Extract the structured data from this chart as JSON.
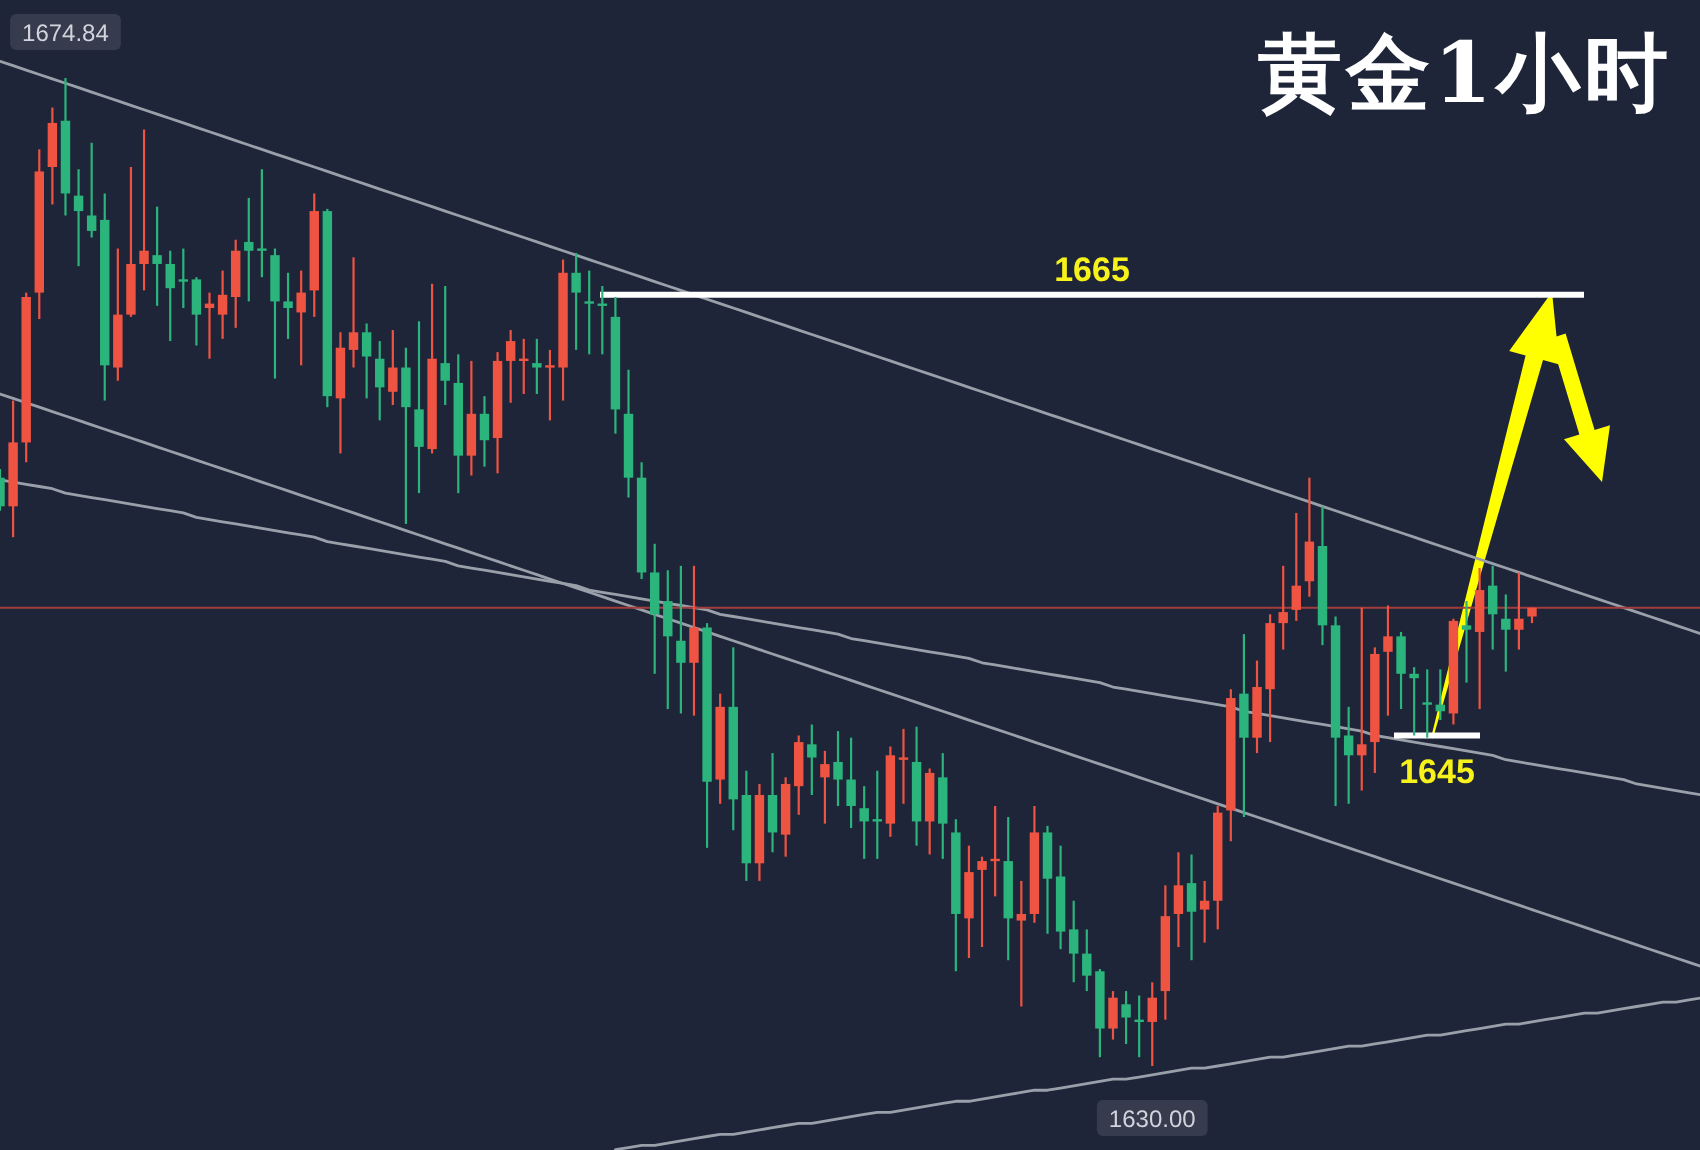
{
  "chart_data": {
    "type": "candlestick",
    "title": "黄金1小时",
    "categories": [
      null,
      null,
      null,
      null,
      null,
      null,
      null,
      null,
      null,
      null,
      null,
      null,
      null,
      null,
      null,
      null,
      null,
      null,
      null,
      null,
      null,
      null,
      null,
      null,
      null,
      null,
      null,
      null,
      null,
      null,
      null,
      null,
      null,
      null,
      null,
      null,
      null,
      null,
      null,
      null,
      null,
      null,
      null,
      null,
      null,
      null,
      null,
      null,
      null,
      null,
      null,
      null,
      null,
      null,
      null,
      null,
      null,
      null,
      null,
      null,
      null,
      null,
      null,
      null,
      null,
      null,
      null,
      null,
      null,
      null,
      null,
      null,
      null,
      null,
      null,
      null,
      null,
      null,
      null,
      null,
      null,
      null,
      null,
      null,
      null,
      null,
      null,
      null,
      null,
      null,
      null,
      null,
      null,
      null,
      null,
      null,
      null,
      null,
      null,
      null,
      null,
      null,
      null,
      null,
      null,
      null,
      null,
      null,
      null,
      null,
      null,
      null,
      null,
      null,
      null,
      null,
      null,
      null,
      null,
      null,
      null,
      null,
      null,
      null,
      null,
      null,
      null,
      null,
      null,
      null,
      null
    ],
    "ohlc": [
      [
        1656.7,
        1657.1,
        1655.2,
        1655.4
      ],
      [
        1655.4,
        1660.2,
        1654.0,
        1658.3
      ],
      [
        1658.3,
        1665.1,
        1657.4,
        1664.9
      ],
      [
        1665.1,
        1671.6,
        1663.9,
        1670.6
      ],
      [
        1670.8,
        1673.5,
        1669.1,
        1672.8
      ],
      [
        1672.9,
        1674.84,
        1668.6,
        1669.6
      ],
      [
        1669.5,
        1670.7,
        1666.3,
        1668.8
      ],
      [
        1668.6,
        1671.9,
        1667.6,
        1667.9
      ],
      [
        1668.4,
        1669.6,
        1660.2,
        1661.8
      ],
      [
        1661.7,
        1667.1,
        1661.1,
        1664.1
      ],
      [
        1664.1,
        1670.8,
        1664.0,
        1666.4
      ],
      [
        1666.4,
        1672.5,
        1665.2,
        1667.0
      ],
      [
        1666.8,
        1669.0,
        1664.5,
        1666.4
      ],
      [
        1666.4,
        1667.0,
        1662.9,
        1665.3
      ],
      [
        1665.7,
        1667.1,
        1664.4,
        1665.6
      ],
      [
        1665.7,
        1665.8,
        1662.7,
        1664.1
      ],
      [
        1664.4,
        1665.1,
        1662.1,
        1664.6
      ],
      [
        1664.1,
        1666.1,
        1663.0,
        1665.0
      ],
      [
        1664.9,
        1667.5,
        1663.5,
        1667.0
      ],
      [
        1667.4,
        1669.4,
        1664.7,
        1667.0
      ],
      [
        1667.1,
        1670.7,
        1665.8,
        1667.0
      ],
      [
        1666.8,
        1667.1,
        1661.2,
        1664.7
      ],
      [
        1664.7,
        1666.0,
        1663.0,
        1664.4
      ],
      [
        1664.2,
        1666.1,
        1661.8,
        1665.1
      ],
      [
        1665.2,
        1669.6,
        1664.0,
        1668.8
      ],
      [
        1668.8,
        1668.9,
        1659.9,
        1660.4
      ],
      [
        1660.3,
        1663.3,
        1657.8,
        1662.6
      ],
      [
        1662.5,
        1666.7,
        1661.7,
        1663.3
      ],
      [
        1663.3,
        1663.7,
        1660.3,
        1662.2
      ],
      [
        1662.1,
        1662.9,
        1659.3,
        1660.8
      ],
      [
        1660.6,
        1663.4,
        1660.0,
        1661.7
      ],
      [
        1661.7,
        1662.6,
        1654.6,
        1659.9
      ],
      [
        1659.8,
        1663.8,
        1656.0,
        1658.1
      ],
      [
        1658.0,
        1665.5,
        1657.8,
        1662.1
      ],
      [
        1661.9,
        1665.4,
        1660.0,
        1661.1
      ],
      [
        1661.0,
        1662.3,
        1656.0,
        1657.7
      ],
      [
        1657.7,
        1662.0,
        1656.8,
        1659.6
      ],
      [
        1659.6,
        1660.4,
        1657.2,
        1658.4
      ],
      [
        1658.5,
        1662.4,
        1656.9,
        1662.0
      ],
      [
        1662.0,
        1663.4,
        1660.1,
        1662.9
      ],
      [
        1662.0,
        1663.0,
        1660.5,
        1662.1
      ],
      [
        1661.9,
        1663.0,
        1660.5,
        1661.7
      ],
      [
        1661.7,
        1662.5,
        1659.3,
        1661.8
      ],
      [
        1661.7,
        1666.6,
        1660.2,
        1666.0
      ],
      [
        1666.0,
        1666.9,
        1662.5,
        1665.1
      ],
      [
        1664.7,
        1666.1,
        1662.3,
        1664.6
      ],
      [
        1664.6,
        1665.4,
        1662.3,
        1664.5
      ],
      [
        1664.0,
        1664.9,
        1658.7,
        1659.8
      ],
      [
        1659.6,
        1661.6,
        1655.8,
        1656.7
      ],
      [
        1656.7,
        1657.4,
        1652.1,
        1652.4
      ],
      [
        1652.4,
        1653.7,
        1647.8,
        1650.5
      ],
      [
        1651.1,
        1652.5,
        1646.2,
        1649.5
      ],
      [
        1649.3,
        1652.7,
        1646.0,
        1648.3
      ],
      [
        1648.3,
        1652.7,
        1645.9,
        1649.9
      ],
      [
        1649.9,
        1650.1,
        1639.9,
        1642.9
      ],
      [
        1643.0,
        1646.9,
        1641.9,
        1646.3
      ],
      [
        1646.3,
        1649.0,
        1640.7,
        1642.1
      ],
      [
        1642.3,
        1643.4,
        1638.4,
        1639.2
      ],
      [
        1639.2,
        1642.8,
        1638.4,
        1642.3
      ],
      [
        1642.3,
        1644.2,
        1639.7,
        1640.6
      ],
      [
        1640.5,
        1643.1,
        1639.5,
        1642.8
      ],
      [
        1642.7,
        1645.0,
        1641.4,
        1644.7
      ],
      [
        1644.6,
        1645.5,
        1642.3,
        1644.0
      ],
      [
        1643.1,
        1644.3,
        1641.0,
        1643.7
      ],
      [
        1643.8,
        1645.2,
        1641.8,
        1643.0
      ],
      [
        1643.0,
        1644.9,
        1640.8,
        1641.8
      ],
      [
        1641.7,
        1642.7,
        1639.4,
        1641.1
      ],
      [
        1641.2,
        1643.4,
        1639.4,
        1641.1
      ],
      [
        1641.0,
        1644.5,
        1640.4,
        1644.1
      ],
      [
        1643.9,
        1645.3,
        1641.9,
        1644.0
      ],
      [
        1643.8,
        1645.4,
        1640.0,
        1641.1
      ],
      [
        1641.1,
        1643.5,
        1639.6,
        1643.3
      ],
      [
        1643.1,
        1644.2,
        1639.4,
        1641.0
      ],
      [
        1640.6,
        1641.2,
        1634.3,
        1636.9
      ],
      [
        1636.7,
        1640.0,
        1634.9,
        1638.8
      ],
      [
        1638.9,
        1639.5,
        1635.4,
        1639.3
      ],
      [
        1639.3,
        1641.8,
        1637.7,
        1639.4
      ],
      [
        1639.3,
        1641.3,
        1634.8,
        1636.7
      ],
      [
        1636.6,
        1638.4,
        1632.7,
        1636.9
      ],
      [
        1636.9,
        1641.8,
        1636.5,
        1640.6
      ],
      [
        1640.6,
        1640.9,
        1636.0,
        1638.5
      ],
      [
        1638.6,
        1640.0,
        1635.3,
        1636.1
      ],
      [
        1636.2,
        1637.5,
        1633.8,
        1635.1
      ],
      [
        1635.1,
        1636.2,
        1633.4,
        1634.1
      ],
      [
        1634.3,
        1634.4,
        1630.4,
        1631.7
      ],
      [
        1631.7,
        1633.4,
        1631.2,
        1633.1
      ],
      [
        1632.8,
        1633.4,
        1631.0,
        1632.2
      ],
      [
        1632.1,
        1633.2,
        1630.4,
        1632.0
      ],
      [
        1632.0,
        1633.8,
        1630.0,
        1633.1
      ],
      [
        1633.4,
        1638.2,
        1632.1,
        1636.8
      ],
      [
        1636.9,
        1639.7,
        1635.4,
        1638.2
      ],
      [
        1638.3,
        1639.6,
        1634.8,
        1637.0
      ],
      [
        1637.1,
        1638.4,
        1635.6,
        1637.5
      ],
      [
        1637.5,
        1641.8,
        1636.2,
        1641.5
      ],
      [
        1641.6,
        1647.1,
        1640.2,
        1646.7
      ],
      [
        1646.9,
        1649.6,
        1641.3,
        1644.9
      ],
      [
        1644.9,
        1648.4,
        1644.2,
        1647.2
      ],
      [
        1647.1,
        1650.5,
        1644.7,
        1650.1
      ],
      [
        1650.1,
        1652.7,
        1648.9,
        1650.6
      ],
      [
        1650.7,
        1655.1,
        1650.2,
        1651.8
      ],
      [
        1652.0,
        1656.7,
        1651.3,
        1653.8
      ],
      [
        1653.6,
        1655.4,
        1649.1,
        1650.0
      ],
      [
        1650.0,
        1650.4,
        1641.8,
        1644.9
      ],
      [
        1645.0,
        1646.3,
        1641.9,
        1644.1
      ],
      [
        1644.1,
        1650.8,
        1642.5,
        1644.6
      ],
      [
        1644.7,
        1649.0,
        1643.3,
        1648.7
      ],
      [
        1648.8,
        1650.9,
        1645.9,
        1649.5
      ],
      [
        1649.5,
        1649.7,
        1646.2,
        1647.8
      ],
      [
        1647.8,
        1648.1,
        1645.0,
        1647.6
      ],
      [
        1646.5,
        1648.0,
        1644.9,
        1646.4
      ],
      [
        1646.4,
        1648.0,
        1645.7,
        1646.1
      ],
      [
        1646.0,
        1650.3,
        1645.5,
        1650.2
      ],
      [
        1650.0,
        1651.1,
        1647.4,
        1649.8
      ],
      [
        1649.7,
        1652.6,
        1646.2,
        1651.6
      ],
      [
        1651.8,
        1652.7,
        1648.9,
        1650.5
      ],
      [
        1650.3,
        1651.4,
        1647.9,
        1649.8
      ],
      [
        1649.8,
        1652.4,
        1648.9,
        1650.3
      ],
      [
        1650.4,
        1650.8,
        1650.1,
        1650.8
      ],
      null,
      null,
      null,
      null,
      null,
      null,
      null,
      null,
      null,
      null,
      null,
      null,
      null
    ],
    "colors": [
      "#2bb47c",
      "#ef5442",
      "#ef5442",
      "#ef5442",
      "#ef5442",
      "#2bb47c",
      "#2bb47c",
      "#2bb47c",
      "#2bb47c",
      "#ef5442",
      "#ef5442",
      "#ef5442",
      "#2bb47c",
      "#2bb47c",
      "#2bb47c",
      "#2bb47c",
      "#ef5442",
      "#ef5442",
      "#ef5442",
      "#2bb47c",
      "#2bb47c",
      "#2bb47c",
      "#2bb47c",
      "#ef5442",
      "#ef5442",
      "#2bb47c",
      "#ef5442",
      "#ef5442",
      "#2bb47c",
      "#2bb47c",
      "#ef5442",
      "#2bb47c",
      "#2bb47c",
      "#ef5442",
      "#2bb47c",
      "#2bb47c",
      "#ef5442",
      "#2bb47c",
      "#ef5442",
      "#ef5442",
      "#ef5442",
      "#2bb47c",
      "#ef5442",
      "#ef5442",
      "#2bb47c",
      "#2bb47c",
      "#2bb47c",
      "#2bb47c",
      "#2bb47c",
      "#2bb47c",
      "#2bb47c",
      "#2bb47c",
      "#2bb47c",
      "#ef5442",
      "#2bb47c",
      "#ef5442",
      "#2bb47c",
      "#2bb47c",
      "#ef5442",
      "#2bb47c",
      "#ef5442",
      "#ef5442",
      "#2bb47c",
      "#ef5442",
      "#2bb47c",
      "#2bb47c",
      "#2bb47c",
      "#2bb47c",
      "#ef5442",
      "#ef5442",
      "#2bb47c",
      "#ef5442",
      "#2bb47c",
      "#2bb47c",
      "#ef5442",
      "#ef5442",
      "#ef5442",
      "#2bb47c",
      "#ef5442",
      "#ef5442",
      "#2bb47c",
      "#2bb47c",
      "#2bb47c",
      "#2bb47c",
      "#2bb47c",
      "#ef5442",
      "#2bb47c",
      "#2bb47c",
      "#ef5442",
      "#ef5442",
      "#ef5442",
      "#2bb47c",
      "#ef5442",
      "#ef5442",
      "#ef5442",
      "#2bb47c",
      "#ef5442",
      "#ef5442",
      "#ef5442",
      "#ef5442",
      "#ef5442",
      "#2bb47c",
      "#2bb47c",
      "#2bb47c",
      "#ef5442",
      "#ef5442",
      "#ef5442",
      "#2bb47c",
      "#2bb47c",
      "#2bb47c",
      "#2bb47c",
      "#ef5442",
      "#2bb47c",
      "#ef5442",
      "#2bb47c",
      "#2bb47c",
      "#ef5442",
      "#ef5442",
      null,
      null,
      null,
      null,
      null,
      null,
      null,
      null,
      null,
      null,
      null,
      null,
      null
    ],
    "series": [
      {
        "type": "line",
        "color": "#9aa0aa",
        "values": [
          1675.6,
          1675.4,
          1675.2,
          1675.0,
          1674.8,
          1674.6,
          1674.4,
          1674.2,
          1674.0,
          1673.8,
          1673.6,
          1673.4,
          1673.2,
          1673.0,
          1672.8,
          1672.6,
          1672.4,
          1672.2,
          1672.0,
          1671.8,
          1671.6,
          1671.4,
          1671.2,
          1671.0,
          1670.8,
          1670.6,
          1670.4,
          1670.2,
          1670.0,
          1669.8,
          1669.6,
          1669.4,
          1669.2,
          1669.0,
          1668.8,
          1668.6,
          1668.4,
          1668.2,
          1668.0,
          1667.8,
          1667.6,
          1667.4,
          1667.2,
          1667.0,
          1666.8,
          1666.6,
          1666.4,
          1666.2,
          1666.0,
          1665.8,
          1665.6,
          1665.4,
          1665.2,
          1665.0,
          1664.8,
          1664.6,
          1664.4,
          1664.2,
          1664.0,
          1663.8,
          1663.6,
          1663.4,
          1663.2,
          1663.0,
          1662.8,
          1662.6,
          1662.4,
          1662.2,
          1662.0,
          1661.8,
          1661.6,
          1661.4,
          1661.2,
          1661.0,
          1660.8,
          1660.6,
          1660.4,
          1660.2,
          1660.0,
          1659.8,
          1659.6,
          1659.4,
          1659.2,
          1659.0,
          1658.8,
          1658.6,
          1658.4,
          1658.2,
          1658.0,
          1657.8,
          1657.6,
          1657.4,
          1657.2,
          1657.0,
          1656.8,
          1656.6,
          1656.4,
          1656.2,
          1656.0,
          1655.8,
          1655.6,
          1655.4,
          1655.2,
          1655.0,
          1654.8,
          1654.6,
          1654.4,
          1654.2,
          1654.0,
          1653.8,
          1653.6,
          1653.4,
          1653.2,
          1653.0,
          1652.8,
          1652.6,
          1652.4,
          1652.2,
          1652.0,
          1651.8,
          1651.6,
          1651.4,
          1651.2,
          1651.0,
          1650.8,
          1650.6,
          1650.4,
          1650.2,
          1650.0,
          1649.8,
          1649.6
        ]
      },
      {
        "type": "line",
        "color": "#9aa0aa",
        "values": [
          1660.5,
          1660.3,
          1660.1,
          1659.9,
          1659.7,
          1659.5,
          1659.3,
          1659.1,
          1658.9,
          1658.7,
          1658.5,
          1658.3,
          1658.1,
          1657.9,
          1657.7,
          1657.5,
          1657.3,
          1657.1,
          1656.9,
          1656.7,
          1656.5,
          1656.3,
          1656.1,
          1655.9,
          1655.7,
          1655.5,
          1655.3,
          1655.1,
          1654.9,
          1654.7,
          1654.5,
          1654.3,
          1654.1,
          1653.9,
          1653.7,
          1653.5,
          1653.3,
          1653.1,
          1652.9,
          1652.7,
          1652.5,
          1652.3,
          1652.1,
          1651.9,
          1651.7,
          1651.5,
          1651.3,
          1651.1,
          1650.9,
          1650.7,
          1650.5,
          1650.3,
          1650.1,
          1649.9,
          1649.7,
          1649.5,
          1649.3,
          1649.1,
          1648.9,
          1648.7,
          1648.5,
          1648.3,
          1648.1,
          1647.9,
          1647.7,
          1647.5,
          1647.3,
          1647.1,
          1646.9,
          1646.7,
          1646.5,
          1646.3,
          1646.1,
          1645.9,
          1645.7,
          1645.5,
          1645.3,
          1645.1,
          1644.9,
          1644.7,
          1644.5,
          1644.3,
          1644.1,
          1643.9,
          1643.7,
          1643.5,
          1643.3,
          1643.1,
          1642.9,
          1642.7,
          1642.5,
          1642.3,
          1642.1,
          1641.9,
          1641.7,
          1641.5,
          1641.3,
          1641.1,
          1640.9,
          1640.7,
          1640.5,
          1640.3,
          1640.1,
          1639.9,
          1639.7,
          1639.5,
          1639.3,
          1639.1,
          1638.9,
          1638.7,
          1638.5,
          1638.3,
          1638.1,
          1637.9,
          1637.7,
          1637.5,
          1637.3,
          1637.1,
          1636.9,
          1636.7,
          1636.5,
          1636.3,
          1636.1,
          1635.9,
          1635.7,
          1635.5,
          1635.3,
          1635.1,
          1634.9,
          1634.7,
          1634.5
        ]
      },
      {
        "type": "line",
        "color": "#9aa0aa",
        "values": [
          1656.6,
          1656.5,
          1656.4,
          1656.3,
          1656.2,
          1656.0,
          1655.9,
          1655.8,
          1655.7,
          1655.6,
          1655.5,
          1655.4,
          1655.3,
          1655.2,
          1655.1,
          1654.9,
          1654.8,
          1654.7,
          1654.6,
          1654.5,
          1654.4,
          1654.3,
          1654.2,
          1654.1,
          1654.0,
          1653.8,
          1653.7,
          1653.6,
          1653.5,
          1653.4,
          1653.3,
          1653.2,
          1653.1,
          1653.0,
          1652.9,
          1652.7,
          1652.6,
          1652.5,
          1652.4,
          1652.3,
          1652.2,
          1652.1,
          1652.0,
          1651.9,
          1651.8,
          1651.6,
          1651.5,
          1651.4,
          1651.3,
          1651.2,
          1651.1,
          1651.0,
          1650.9,
          1650.8,
          1650.7,
          1650.5,
          1650.4,
          1650.3,
          1650.2,
          1650.1,
          1650.0,
          1649.9,
          1649.8,
          1649.7,
          1649.6,
          1649.4,
          1649.3,
          1649.2,
          1649.1,
          1649.0,
          1648.9,
          1648.8,
          1648.7,
          1648.6,
          1648.5,
          1648.3,
          1648.2,
          1648.1,
          1648.0,
          1647.9,
          1647.8,
          1647.7,
          1647.6,
          1647.5,
          1647.4,
          1647.2,
          1647.1,
          1647.0,
          1646.9,
          1646.8,
          1646.7,
          1646.6,
          1646.5,
          1646.4,
          1646.3,
          1646.1,
          1646.0,
          1645.9,
          1645.8,
          1645.7,
          1645.6,
          1645.5,
          1645.4,
          1645.3,
          1645.2,
          1645.0,
          1644.9,
          1644.8,
          1644.7,
          1644.6,
          1644.5,
          1644.4,
          1644.3,
          1644.2,
          1644.1,
          1643.9,
          1643.8,
          1643.7,
          1643.6,
          1643.5,
          1643.4,
          1643.3,
          1643.2,
          1643.1,
          1643.0,
          1642.8,
          1642.7,
          1642.6,
          1642.5,
          1642.4,
          1642.3
        ]
      },
      {
        "type": "line",
        "color": "#9aa0aa",
        "values": [
          null,
          null,
          null,
          null,
          null,
          null,
          null,
          null,
          null,
          null,
          null,
          null,
          null,
          null,
          null,
          null,
          null,
          null,
          null,
          null,
          null,
          null,
          null,
          null,
          null,
          null,
          null,
          null,
          null,
          null,
          null,
          null,
          null,
          null,
          null,
          null,
          null,
          null,
          null,
          null,
          null,
          null,
          null,
          null,
          null,
          null,
          null,
          1626.2,
          1626.3,
          1626.4,
          1626.4,
          1626.5,
          1626.6,
          1626.7,
          1626.8,
          1626.9,
          1626.9,
          1627.0,
          1627.1,
          1627.2,
          1627.3,
          1627.4,
          1627.4,
          1627.5,
          1627.6,
          1627.7,
          1627.8,
          1627.9,
          1627.9,
          1628.0,
          1628.1,
          1628.2,
          1628.3,
          1628.4,
          1628.4,
          1628.5,
          1628.6,
          1628.7,
          1628.8,
          1628.9,
          1628.9,
          1629.0,
          1629.1,
          1629.2,
          1629.3,
          1629.4,
          1629.4,
          1629.5,
          1629.6,
          1629.7,
          1629.8,
          1629.9,
          1629.9,
          1630.0,
          1630.1,
          1630.2,
          1630.3,
          1630.4,
          1630.4,
          1630.5,
          1630.6,
          1630.7,
          1630.8,
          1630.9,
          1630.9,
          1631.0,
          1631.1,
          1631.2,
          1631.3,
          1631.4,
          1631.4,
          1631.5,
          1631.6,
          1631.7,
          1631.8,
          1631.9,
          1631.9,
          1632.0,
          1632.1,
          1632.2,
          1632.3,
          1632.4,
          1632.4,
          1632.5,
          1632.6,
          1632.7,
          1632.8,
          1632.9,
          1632.9,
          1633.0,
          1633.1
        ]
      }
    ],
    "ref_lines": [
      {
        "axis": "y",
        "value": 1665,
        "label": "1665",
        "color": "#ffffff"
      },
      {
        "axis": "y",
        "value": 1645,
        "label": "1645",
        "color": "#ffffff"
      },
      {
        "axis": "y",
        "value": 1650.8,
        "color": "#a33c3c"
      }
    ],
    "annotations": [
      {
        "text": "1674.84",
        "y": 1674.84
      },
      {
        "text": "1630.00",
        "y": 1630.0
      }
    ]
  }
}
